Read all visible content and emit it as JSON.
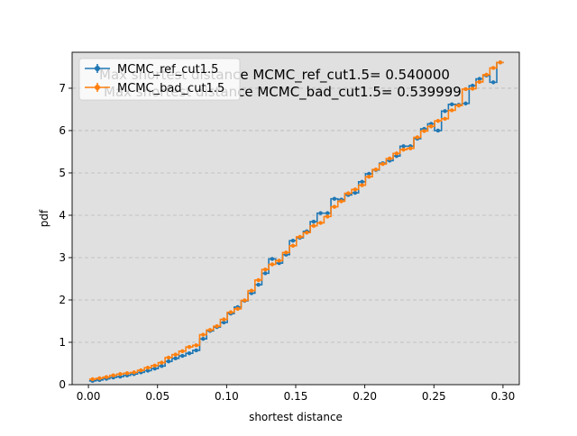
{
  "chart_data": {
    "type": "line",
    "xlabel": "shortest distance",
    "ylabel": "pdf",
    "xlim": [
      -0.0118,
      0.3118
    ],
    "ylim": [
      0,
      7.85
    ],
    "grid": "y-dashed",
    "legend_position": "top-left",
    "background_color": "#e0e0e0",
    "x_ticks": [
      0.0,
      0.05,
      0.1,
      0.15,
      0.2,
      0.25,
      0.3
    ],
    "x_tick_labels": [
      "0.00",
      "0.05",
      "0.10",
      "0.15",
      "0.20",
      "0.25",
      "0.30"
    ],
    "y_ticks": [
      0,
      1,
      2,
      3,
      4,
      5,
      6,
      7
    ],
    "y_tick_labels": [
      "0",
      "1",
      "2",
      "3",
      "4",
      "5",
      "6",
      "7"
    ],
    "annotations": [
      "Max shortest distance MCMC_ref_cut1.5= 0.540000",
      "Max shortest distance MCMC_bad_cut1.5= 0.539999"
    ],
    "x": [
      0.003,
      0.008,
      0.013,
      0.018,
      0.023,
      0.028,
      0.033,
      0.038,
      0.043,
      0.048,
      0.053,
      0.058,
      0.063,
      0.068,
      0.073,
      0.078,
      0.083,
      0.088,
      0.093,
      0.098,
      0.103,
      0.108,
      0.113,
      0.118,
      0.123,
      0.128,
      0.133,
      0.138,
      0.143,
      0.148,
      0.153,
      0.158,
      0.163,
      0.168,
      0.173,
      0.178,
      0.183,
      0.188,
      0.193,
      0.198,
      0.203,
      0.208,
      0.213,
      0.218,
      0.223,
      0.228,
      0.233,
      0.238,
      0.243,
      0.248,
      0.253,
      0.258,
      0.263,
      0.268,
      0.273,
      0.278,
      0.283,
      0.288,
      0.293,
      0.298
    ],
    "series": [
      {
        "name": "MCMC_ref_cut1.5",
        "color": "#1f77b4",
        "values": [
          0.09,
          0.11,
          0.14,
          0.17,
          0.19,
          0.22,
          0.25,
          0.29,
          0.33,
          0.38,
          0.44,
          0.55,
          0.62,
          0.68,
          0.74,
          0.81,
          1.08,
          1.27,
          1.36,
          1.47,
          1.68,
          1.83,
          1.98,
          2.16,
          2.36,
          2.63,
          2.97,
          2.87,
          3.07,
          3.4,
          3.47,
          3.62,
          3.85,
          4.05,
          4.05,
          4.39,
          4.37,
          4.48,
          4.53,
          4.79,
          4.98,
          5.07,
          5.23,
          5.29,
          5.4,
          5.63,
          5.63,
          5.81,
          6.04,
          6.16,
          6.0,
          6.46,
          6.62,
          6.61,
          6.64,
          7.06,
          7.22,
          7.3,
          7.14,
          7.61
        ]
      },
      {
        "name": "MCMC_bad_cut1.5",
        "color": "#ff7f0e",
        "values": [
          0.13,
          0.15,
          0.18,
          0.22,
          0.25,
          0.27,
          0.29,
          0.34,
          0.4,
          0.45,
          0.52,
          0.64,
          0.71,
          0.79,
          0.89,
          0.93,
          1.18,
          1.29,
          1.38,
          1.54,
          1.71,
          1.79,
          1.99,
          2.22,
          2.47,
          2.72,
          2.84,
          2.93,
          3.12,
          3.28,
          3.49,
          3.59,
          3.75,
          3.82,
          3.97,
          4.2,
          4.33,
          4.52,
          4.61,
          4.71,
          4.91,
          5.08,
          5.21,
          5.34,
          5.46,
          5.55,
          5.58,
          5.84,
          5.99,
          6.1,
          6.23,
          6.28,
          6.48,
          6.59,
          6.98,
          6.99,
          7.15,
          7.32,
          7.48,
          7.61
        ]
      }
    ]
  }
}
